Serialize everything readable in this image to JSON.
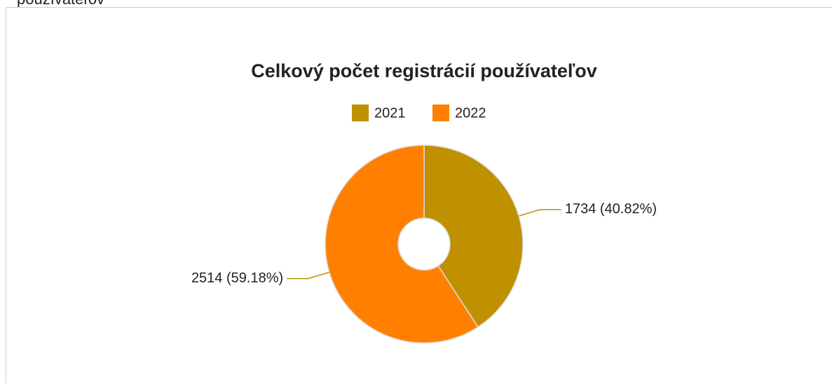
{
  "heading": "používateľov",
  "chart_data": {
    "type": "donut",
    "title": "Celkový počet registrácií používateľov",
    "legend": "top",
    "categories": [
      "2021",
      "2022"
    ],
    "values": [
      1734,
      2514
    ],
    "value_labels": [
      "1734 (40.82%)",
      "2514 (59.18%)"
    ],
    "colors": [
      "#bf9000",
      "#ff8000"
    ]
  }
}
